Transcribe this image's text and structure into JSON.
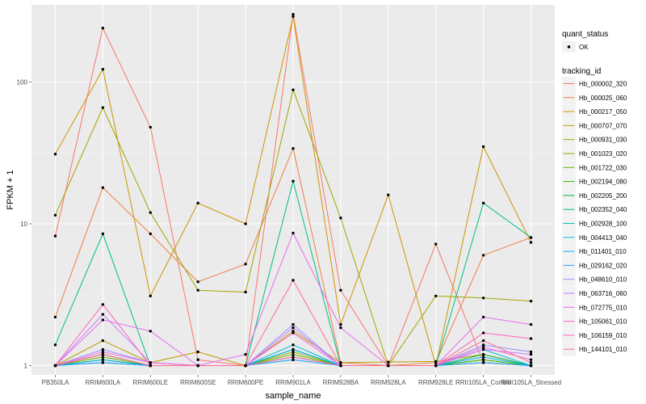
{
  "chart_data": {
    "type": "line",
    "xlabel": "sample_name",
    "ylabel": "FPKM + 1",
    "y_scale": "log10",
    "ylim": [
      0.86,
      350
    ],
    "y_ticks": [
      {
        "value": 1,
        "label": "1"
      },
      {
        "value": 10,
        "label": "10"
      },
      {
        "value": 100,
        "label": "100"
      }
    ],
    "grid": true,
    "legend_position": "right",
    "categories": [
      "PB350LA",
      "RRIM600LA",
      "RRIM600LE",
      "RRIM600SE",
      "RRIM600PE",
      "RRIM901LA",
      "RRIM928BA",
      "RRIM928LA",
      "RRIM928LE",
      "RRII105LA_Control",
      "RRII105LA_Stressed"
    ],
    "quant_status": {
      "title": "quant_status",
      "entries": [
        {
          "label": "OK",
          "marker": "point"
        }
      ]
    },
    "legend_title": "tracking_id",
    "series": [
      {
        "name": "Hb_000002_320",
        "color": "#F8766D",
        "values": [
          8.2,
          240,
          48,
          1.1,
          1.0,
          300,
          3.4,
          1.0,
          7.2,
          1.05,
          1.0
        ]
      },
      {
        "name": "Hb_000025_060",
        "color": "#EF7F49",
        "values": [
          2.2,
          18,
          8.5,
          3.9,
          5.2,
          34,
          1.05,
          1.0,
          1.05,
          6.0,
          8.0
        ]
      },
      {
        "name": "Hb_000217_050",
        "color": "#CF9400",
        "values": [
          31,
          123,
          3.1,
          14,
          10,
          290,
          1.95,
          16,
          1.0,
          35,
          7.4
        ]
      },
      {
        "name": "Hb_000707_070",
        "color": "#C09B00",
        "values": [
          1.0,
          1.5,
          1.05,
          1.25,
          1.0,
          1.75,
          1.05,
          1.06,
          1.07,
          1.2,
          1.0
        ]
      },
      {
        "name": "Hb_000931_030",
        "color": "#A3A500",
        "values": [
          11.5,
          66,
          12,
          3.4,
          3.3,
          88,
          11,
          1.0,
          3.1,
          3.0,
          2.85
        ]
      },
      {
        "name": "Hb_001023_020",
        "color": "#8CAB00",
        "values": [
          1.0,
          1.2,
          1.0,
          1.0,
          1.0,
          1.25,
          1.0,
          1.0,
          1.0,
          1.1,
          1.0
        ]
      },
      {
        "name": "Hb_001722_030",
        "color": "#6BB100",
        "values": [
          1.0,
          1.15,
          1.0,
          1.0,
          1.0,
          1.2,
          1.0,
          1.0,
          1.0,
          1.05,
          1.0
        ]
      },
      {
        "name": "Hb_002194_080",
        "color": "#39B600",
        "values": [
          1.0,
          1.1,
          1.0,
          1.0,
          1.0,
          1.15,
          1.0,
          1.0,
          1.0,
          1.1,
          1.0
        ]
      },
      {
        "name": "Hb_002205_200",
        "color": "#00BA38",
        "values": [
          1.0,
          1.2,
          1.0,
          1.0,
          1.0,
          1.3,
          1.0,
          1.0,
          1.0,
          1.2,
          1.0
        ]
      },
      {
        "name": "Hb_002352_040",
        "color": "#00BF7D",
        "values": [
          1.4,
          8.5,
          1.0,
          1.0,
          1.0,
          20,
          1.0,
          1.0,
          1.0,
          14,
          8.0
        ]
      },
      {
        "name": "Hb_002928_100",
        "color": "#00C0AF",
        "values": [
          1.0,
          1.05,
          1.0,
          1.0,
          1.0,
          1.1,
          1.0,
          1.0,
          1.0,
          1.05,
          1.0
        ]
      },
      {
        "name": "Hb_004413_040",
        "color": "#00BCD8",
        "values": [
          1.0,
          1.05,
          1.0,
          1.0,
          1.0,
          1.4,
          1.0,
          1.0,
          1.0,
          1.3,
          1.0
        ]
      },
      {
        "name": "Hb_011401_010",
        "color": "#00B0F6",
        "values": [
          1.0,
          1.1,
          1.0,
          1.0,
          1.0,
          1.3,
          1.0,
          1.0,
          1.0,
          1.15,
          1.0
        ]
      },
      {
        "name": "Hb_029162_020",
        "color": "#35A2FF",
        "values": [
          1.0,
          1.05,
          1.0,
          1.0,
          1.0,
          1.1,
          1.0,
          1.0,
          1.0,
          1.05,
          1.0
        ]
      },
      {
        "name": "Hb_048610_010",
        "color": "#9590FF",
        "values": [
          1.0,
          1.3,
          1.05,
          1.0,
          1.0,
          1.95,
          1.0,
          1.0,
          1.0,
          1.4,
          1.25
        ]
      },
      {
        "name": "Hb_063716_060",
        "color": "#C77CFF",
        "values": [
          1.0,
          2.3,
          1.05,
          1.0,
          1.0,
          1.85,
          1.0,
          1.0,
          1.0,
          1.3,
          1.2
        ]
      },
      {
        "name": "Hb_072775_010",
        "color": "#E76BF3",
        "values": [
          1.0,
          2.1,
          1.75,
          1.0,
          1.2,
          8.6,
          1.85,
          1.0,
          1.0,
          2.2,
          1.95
        ]
      },
      {
        "name": "Hb_105061_010",
        "color": "#FA62DB",
        "values": [
          1.0,
          1.25,
          1.05,
          1.0,
          1.0,
          1.7,
          1.0,
          1.0,
          1.0,
          1.35,
          1.1
        ]
      },
      {
        "name": "Hb_106159_010",
        "color": "#FF62BC",
        "values": [
          1.0,
          2.7,
          1.0,
          1.0,
          1.0,
          1.15,
          1.0,
          1.0,
          1.0,
          1.7,
          1.55
        ]
      },
      {
        "name": "Hb_144101_010",
        "color": "#FF6C91",
        "values": [
          1.0,
          1.2,
          1.0,
          1.0,
          1.0,
          4.0,
          1.0,
          1.0,
          1.0,
          1.5,
          1.05
        ]
      }
    ]
  }
}
